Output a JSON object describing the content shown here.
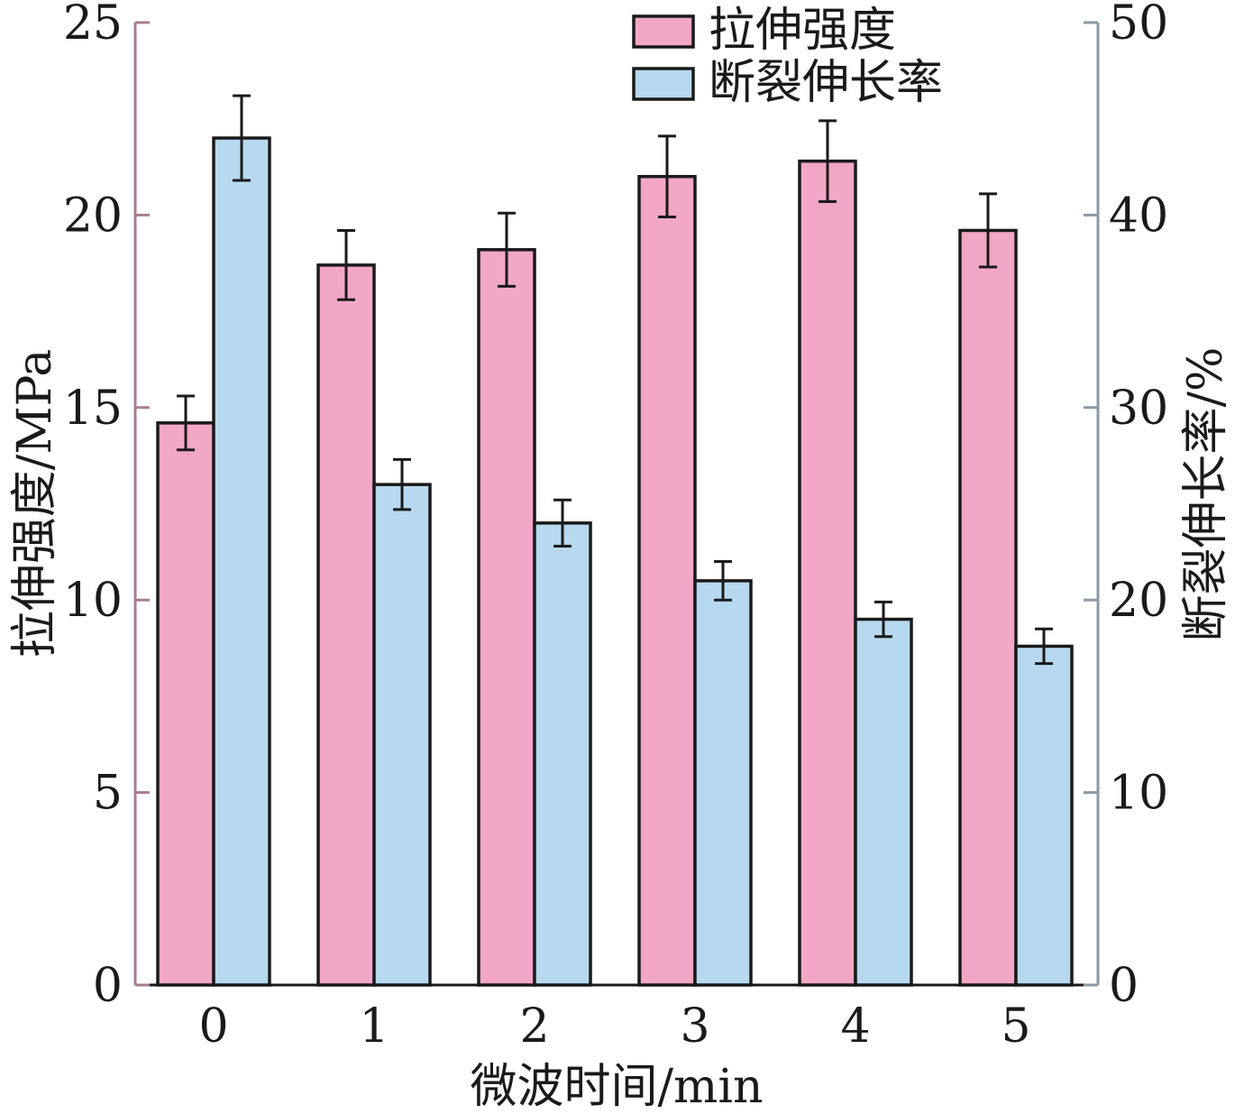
{
  "chart_data": {
    "type": "bar",
    "title": "",
    "xlabel": "微波时间/min",
    "ylabel_left": "拉伸强度/MPa",
    "ylabel_right": "断裂伸长率/%",
    "categories": [
      "0",
      "1",
      "2",
      "3",
      "4",
      "5"
    ],
    "ylim_left": [
      0,
      25
    ],
    "ylim_right": [
      0,
      50
    ],
    "yticks_left": [
      0,
      5,
      10,
      15,
      20,
      25
    ],
    "yticks_right": [
      0,
      10,
      20,
      30,
      40,
      50
    ],
    "grid": false,
    "legend_position": "top-right",
    "series": [
      {
        "name": "拉伸强度",
        "axis": "left",
        "color": "#f2a7c6",
        "values": [
          14.6,
          18.7,
          19.1,
          21.0,
          21.4,
          19.6
        ],
        "errors": [
          0.7,
          0.9,
          0.95,
          1.05,
          1.05,
          0.95
        ]
      },
      {
        "name": "断裂伸长率",
        "axis": "right",
        "color": "#b7d9ef",
        "values": [
          44.0,
          26.0,
          24.0,
          21.0,
          19.0,
          17.6
        ],
        "errors": [
          2.2,
          1.3,
          1.2,
          1.0,
          0.9,
          0.9
        ]
      }
    ],
    "left_axis_color": "#a87c92",
    "right_axis_color": "#8a9aa6"
  }
}
